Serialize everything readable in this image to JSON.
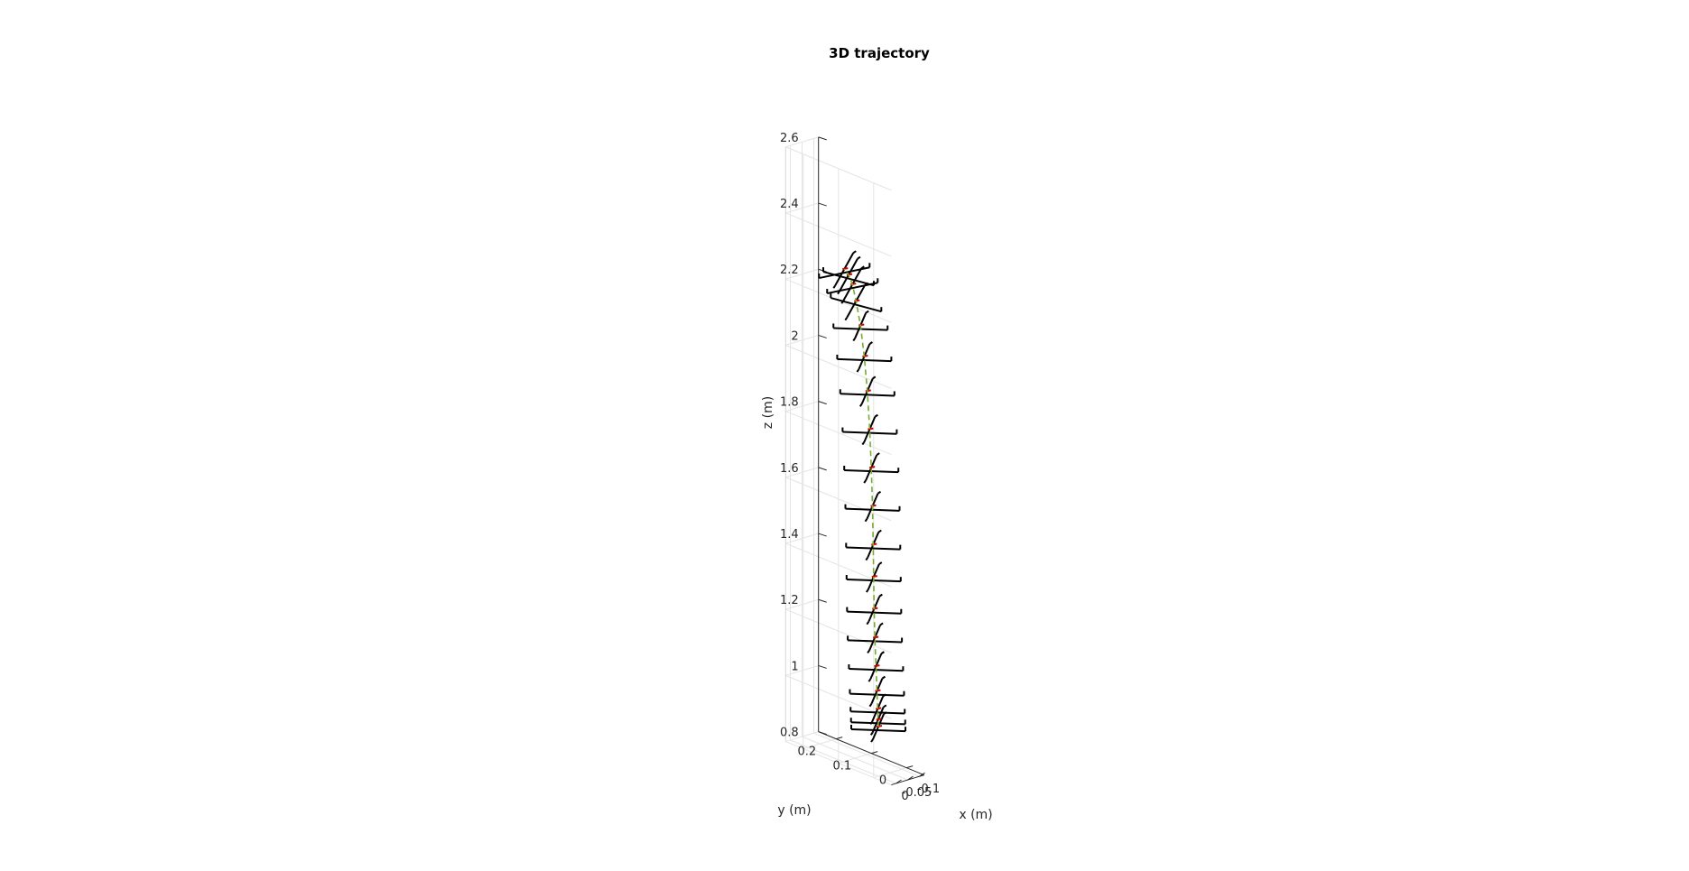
{
  "chart_data": {
    "type": "line",
    "title": "3D trajectory",
    "xlabel": "x (m)",
    "ylabel": "y (m)",
    "zlabel": "z (m)",
    "xlim": [
      -0.12,
      0.02
    ],
    "ylim": [
      -0.05,
      0.25
    ],
    "zlim": [
      0.8,
      2.6
    ],
    "xticks": [
      "-0.1",
      "-0.05",
      "0"
    ],
    "yticks": [
      "0",
      "0.1",
      "0.2"
    ],
    "zticks": [
      "0.8",
      "1",
      "1.2",
      "1.4",
      "1.6",
      "1.8",
      "2",
      "2.2",
      "2.4",
      "2.6"
    ],
    "grid": true,
    "series": [
      {
        "color": "#77ac30",
        "line_style": "dashed",
        "x": [
          0.0,
          -0.002,
          -0.006,
          -0.012,
          -0.02,
          -0.03,
          -0.042,
          -0.055,
          -0.068,
          -0.08,
          -0.09,
          -0.098,
          -0.103,
          -0.105,
          -0.104,
          -0.1,
          -0.092,
          -0.08,
          -0.065
        ],
        "y": [
          0.0,
          0.002,
          0.006,
          0.012,
          0.02,
          0.03,
          0.04,
          0.05,
          0.06,
          0.07,
          0.08,
          0.09,
          0.1,
          0.11,
          0.12,
          0.13,
          0.135,
          0.138,
          0.14
        ],
        "z": [
          0.95,
          0.97,
          1.0,
          1.05,
          1.12,
          1.2,
          1.28,
          1.37,
          1.46,
          1.57,
          1.68,
          1.79,
          1.9,
          2.0,
          2.09,
          2.16,
          2.21,
          2.24,
          2.26
        ]
      }
    ]
  }
}
